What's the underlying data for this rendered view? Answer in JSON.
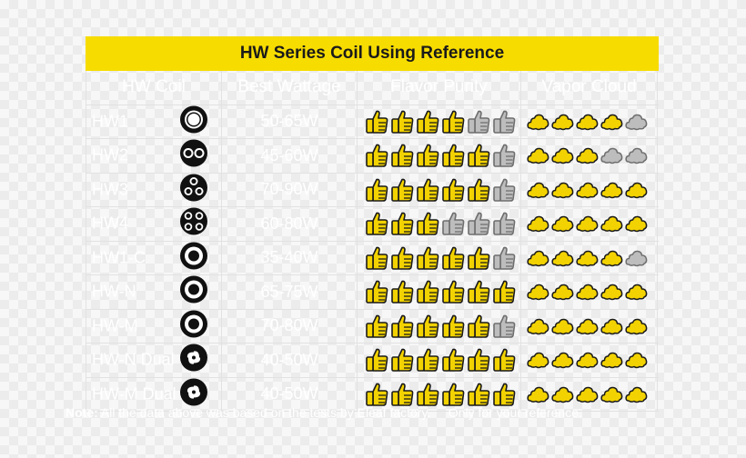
{
  "title": "HW Series Coil Using Reference",
  "headers": [
    "HW Coil",
    "Best Wattage",
    "Flavor Purity",
    "Vapor Cloud"
  ],
  "rows": [
    {
      "coil": "HW1",
      "wattage": "50-65W",
      "flavor": 4,
      "vapor": 4,
      "icon": "single-ring-coil-icon"
    },
    {
      "coil": "HW2",
      "wattage": "45-60W",
      "flavor": 5,
      "vapor": 3,
      "icon": "dual-coil-icon"
    },
    {
      "coil": "HW3",
      "wattage": "70-90W",
      "flavor": 5,
      "vapor": 5,
      "icon": "triple-coil-icon"
    },
    {
      "coil": "HW4",
      "wattage": "60-80W",
      "flavor": 3,
      "vapor": 5,
      "icon": "quad-coil-icon"
    },
    {
      "coil": "HW1-C",
      "wattage": "35-40W",
      "flavor": 5,
      "vapor": 4,
      "icon": "target-coil-icon"
    },
    {
      "coil": "HW-N",
      "wattage": "65-75W",
      "flavor": 6,
      "vapor": 5,
      "icon": "target-coil-icon"
    },
    {
      "coil": "HW-M",
      "wattage": "70-80W",
      "flavor": 5,
      "vapor": 5,
      "icon": "target-coil-icon"
    },
    {
      "coil": "HW-N Dual",
      "wattage": "40-50W",
      "flavor": 6,
      "vapor": 5,
      "icon": "swirl-coil-icon"
    },
    {
      "coil": "HW-M Dual",
      "wattage": "40-50W",
      "flavor": 6,
      "vapor": 5,
      "icon": "swirl-coil-icon"
    }
  ],
  "rating_scale": {
    "flavor_max": 6,
    "vapor_max": 5
  },
  "colors": {
    "accent": "#f7dc00",
    "rating_on": "#f2d200",
    "rating_off": "#bdbdbd",
    "outline": "#1a1a1a"
  },
  "note": {
    "label": "Note:",
    "text": " All the data above was based on the tests by Eleaf factory.",
    "extra": "Only for your reference."
  }
}
